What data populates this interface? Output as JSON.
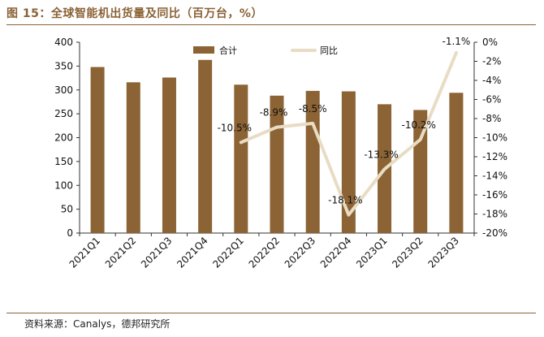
{
  "figure": {
    "title": "图 15：全球智能机出货量及同比（百万台，%）",
    "source": "资料来源：Canalys，德邦研究所"
  },
  "colors": {
    "bar": "#8b6334",
    "line": "#e8dcc4",
    "accent": "#8a6236",
    "axis": "#333333"
  },
  "chart_data": {
    "type": "bar",
    "categories": [
      "2021Q1",
      "2021Q2",
      "2021Q3",
      "2021Q4",
      "2022Q1",
      "2022Q2",
      "2022Q3",
      "2022Q4",
      "2023Q1",
      "2023Q2",
      "2023Q3"
    ],
    "series": [
      {
        "name": "合计",
        "type": "bar",
        "axis": "left",
        "values": [
          348,
          316,
          326,
          363,
          311,
          288,
          298,
          297,
          270,
          258,
          294
        ]
      },
      {
        "name": "同比",
        "type": "line",
        "axis": "right",
        "values": [
          null,
          null,
          null,
          null,
          -10.5,
          -8.9,
          -8.5,
          -18.1,
          -13.3,
          -10.2,
          -1.1
        ],
        "labels": [
          null,
          null,
          null,
          null,
          "-10.5%",
          "-8.9%",
          "-8.5%",
          "-18.1%",
          "-13.3%",
          "-10.2%",
          "-1.1%"
        ]
      }
    ],
    "left_axis": {
      "min": 0,
      "max": 400,
      "ticks": [
        0,
        50,
        100,
        150,
        200,
        250,
        300,
        350,
        400
      ]
    },
    "right_axis": {
      "min": -20,
      "max": 0,
      "ticks": [
        0,
        -2,
        -4,
        -6,
        -8,
        -10,
        -12,
        -14,
        -16,
        -18,
        -20
      ],
      "tick_labels": [
        "0%",
        "-2%",
        "-4%",
        "-6%",
        "-8%",
        "-10%",
        "-12%",
        "-14%",
        "-16%",
        "-18%",
        "-20%"
      ]
    },
    "legend": {
      "position": "top",
      "items": [
        "合计",
        "同比"
      ]
    }
  }
}
